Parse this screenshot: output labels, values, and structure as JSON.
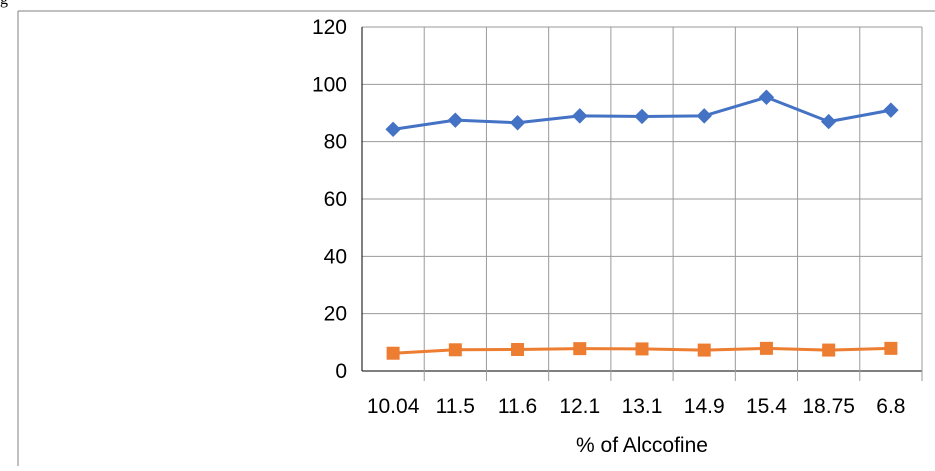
{
  "corner_label": "g",
  "chart_data": {
    "type": "line",
    "title": "",
    "xlabel": "% of Alccofine",
    "ylabel": "",
    "categories": [
      "10.04",
      "11.5",
      "11.6",
      "12.1",
      "13.1",
      "14.9",
      "15.4",
      "18.75",
      "6.8"
    ],
    "ylim": [
      0,
      120
    ],
    "yticks": [
      "0",
      "20",
      "40",
      "60",
      "80",
      "100",
      "120"
    ],
    "grid": true,
    "legend": "none",
    "series": [
      {
        "color": "#4472C4",
        "marker": "diamond",
        "values": [
          84.3,
          87.5,
          86.6,
          89.0,
          88.8,
          89.0,
          95.5,
          87.0,
          91.0
        ]
      },
      {
        "color": "#ED7D31",
        "marker": "square",
        "values": [
          6.2,
          7.4,
          7.5,
          7.8,
          7.7,
          7.3,
          7.9,
          7.3,
          7.9
        ]
      }
    ]
  }
}
